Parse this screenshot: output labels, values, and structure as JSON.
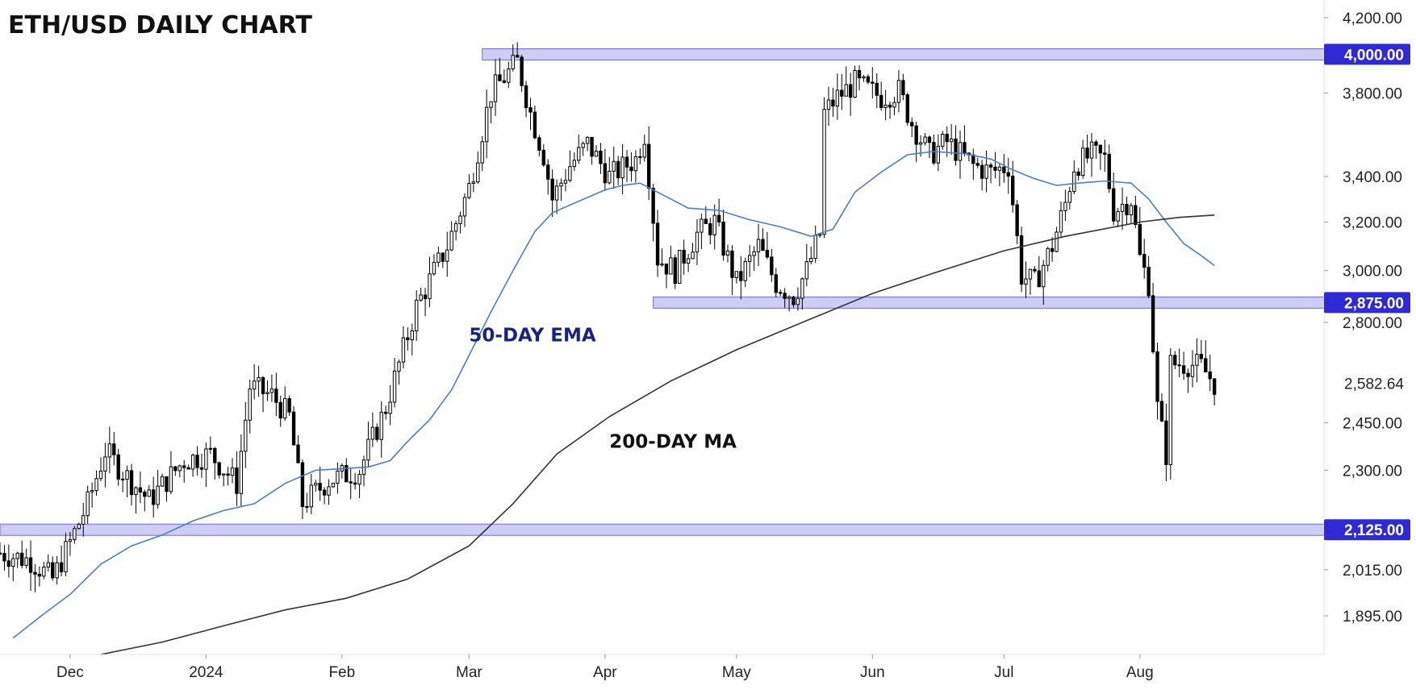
{
  "chart_data": {
    "type": "candlestick",
    "title": "ETH/USD DAILY CHART",
    "xlabel": "",
    "ylabel": "",
    "y_scale": "log",
    "ylim": [
      1800,
      4300
    ],
    "xlim": [
      "2023-11-15",
      "2024-09-12"
    ],
    "grid": false,
    "legend": "none",
    "y_ticks": [
      {
        "value": 4200,
        "label": "4,200.00"
      },
      {
        "value": 3800,
        "label": "3,800.00"
      },
      {
        "value": 3400,
        "label": "3,400.00"
      },
      {
        "value": 3200,
        "label": "3,200.00"
      },
      {
        "value": 3000,
        "label": "3,000.00"
      },
      {
        "value": 2800,
        "label": "2,800.00"
      },
      {
        "value": 2450,
        "label": "2,450.00"
      },
      {
        "value": 2300,
        "label": "2,300.00"
      },
      {
        "value": 2015,
        "label": "2,015.00"
      },
      {
        "value": 1895,
        "label": "1,895.00"
      }
    ],
    "x_ticks": [
      {
        "date": "2023-12-01",
        "label": "Dec"
      },
      {
        "date": "2024-01-01",
        "label": "2024"
      },
      {
        "date": "2024-02-01",
        "label": "Feb"
      },
      {
        "date": "2024-03-01",
        "label": "Mar"
      },
      {
        "date": "2024-04-01",
        "label": "Apr"
      },
      {
        "date": "2024-05-01",
        "label": "May"
      },
      {
        "date": "2024-06-01",
        "label": "Jun"
      },
      {
        "date": "2024-07-01",
        "label": "Jul"
      },
      {
        "date": "2024-08-01",
        "label": "Aug"
      }
    ],
    "levels": [
      {
        "value": 4000,
        "label": "4,000.00",
        "from": "2024-03-04"
      },
      {
        "value": 2875,
        "label": "2,875.00",
        "from": "2024-04-12"
      },
      {
        "value": 2125,
        "label": "2,125.00",
        "from": "2023-11-15"
      }
    ],
    "last_price": {
      "value": 2582.64,
      "label": "2,582.64"
    },
    "annotations": [
      {
        "text": "50-DAY EMA",
        "date": "2024-03-01",
        "value": 2730,
        "color": "#1a237e"
      },
      {
        "text": "200-DAY MA",
        "date": "2024-04-02",
        "value": 2370,
        "color": "#111111"
      }
    ],
    "colors": {
      "up": "#ffffff",
      "down": "#000000",
      "ema": "#4a7ec7",
      "ma": "#333333",
      "level_fill": "#c7c4f5",
      "level_line": "#6f6ae8",
      "badge": "#2f2ad6"
    },
    "series": [
      {
        "name": "50-DAY EMA",
        "points": [
          [
            "2023-11-18",
            1840
          ],
          [
            "2023-11-25",
            1900
          ],
          [
            "2023-12-01",
            1950
          ],
          [
            "2023-12-08",
            2030
          ],
          [
            "2023-12-15",
            2080
          ],
          [
            "2023-12-22",
            2110
          ],
          [
            "2023-12-29",
            2150
          ],
          [
            "2024-01-05",
            2180
          ],
          [
            "2024-01-12",
            2200
          ],
          [
            "2024-01-19",
            2260
          ],
          [
            "2024-01-26",
            2300
          ],
          [
            "2024-02-01",
            2305
          ],
          [
            "2024-02-07",
            2310
          ],
          [
            "2024-02-12",
            2330
          ],
          [
            "2024-02-16",
            2390
          ],
          [
            "2024-02-21",
            2460
          ],
          [
            "2024-02-26",
            2560
          ],
          [
            "2024-03-01",
            2680
          ],
          [
            "2024-03-06",
            2840
          ],
          [
            "2024-03-11",
            3000
          ],
          [
            "2024-03-16",
            3160
          ],
          [
            "2024-03-20",
            3240
          ],
          [
            "2024-03-26",
            3290
          ],
          [
            "2024-04-01",
            3340
          ],
          [
            "2024-04-05",
            3360
          ],
          [
            "2024-04-09",
            3370
          ],
          [
            "2024-04-13",
            3330
          ],
          [
            "2024-04-20",
            3260
          ],
          [
            "2024-04-27",
            3250
          ],
          [
            "2024-05-04",
            3210
          ],
          [
            "2024-05-11",
            3180
          ],
          [
            "2024-05-18",
            3140
          ],
          [
            "2024-05-23",
            3170
          ],
          [
            "2024-05-28",
            3330
          ],
          [
            "2024-06-03",
            3420
          ],
          [
            "2024-06-09",
            3500
          ],
          [
            "2024-06-15",
            3515
          ],
          [
            "2024-06-22",
            3505
          ],
          [
            "2024-06-28",
            3480
          ],
          [
            "2024-07-03",
            3430
          ],
          [
            "2024-07-08",
            3390
          ],
          [
            "2024-07-13",
            3360
          ],
          [
            "2024-07-18",
            3370
          ],
          [
            "2024-07-24",
            3380
          ],
          [
            "2024-07-30",
            3370
          ],
          [
            "2024-08-03",
            3300
          ],
          [
            "2024-08-07",
            3200
          ],
          [
            "2024-08-11",
            3110
          ],
          [
            "2024-08-15",
            3060
          ],
          [
            "2024-08-18",
            3020
          ]
        ]
      },
      {
        "name": "200-DAY MA",
        "points": [
          [
            "2023-12-08",
            1800
          ],
          [
            "2023-12-22",
            1830
          ],
          [
            "2024-01-05",
            1870
          ],
          [
            "2024-01-19",
            1910
          ],
          [
            "2024-02-02",
            1940
          ],
          [
            "2024-02-16",
            1990
          ],
          [
            "2024-03-01",
            2080
          ],
          [
            "2024-03-11",
            2200
          ],
          [
            "2024-03-21",
            2350
          ],
          [
            "2024-04-02",
            2470
          ],
          [
            "2024-04-16",
            2590
          ],
          [
            "2024-05-01",
            2700
          ],
          [
            "2024-05-16",
            2800
          ],
          [
            "2024-06-01",
            2910
          ],
          [
            "2024-06-15",
            2990
          ],
          [
            "2024-07-01",
            3080
          ],
          [
            "2024-07-15",
            3140
          ],
          [
            "2024-08-01",
            3200
          ],
          [
            "2024-08-10",
            3220
          ],
          [
            "2024-08-18",
            3230
          ]
        ]
      }
    ],
    "ohlc_anchors": [
      [
        "2023-11-15",
        2060
      ],
      [
        "2023-11-22",
        2040
      ],
      [
        "2023-11-27",
        1990
      ],
      [
        "2023-12-01",
        2090
      ],
      [
        "2023-12-05",
        2200
      ],
      [
        "2023-12-09",
        2360
      ],
      [
        "2023-12-14",
        2280
      ],
      [
        "2023-12-19",
        2210
      ],
      [
        "2023-12-27",
        2330
      ],
      [
        "2024-01-02",
        2350
      ],
      [
        "2024-01-08",
        2260
      ],
      [
        "2024-01-11",
        2570
      ],
      [
        "2024-01-16",
        2540
      ],
      [
        "2024-01-20",
        2470
      ],
      [
        "2024-01-23",
        2200
      ],
      [
        "2024-01-29",
        2270
      ],
      [
        "2024-02-05",
        2300
      ],
      [
        "2024-02-11",
        2500
      ],
      [
        "2024-02-18",
        2860
      ],
      [
        "2024-02-25",
        3100
      ],
      [
        "2024-03-01",
        3350
      ],
      [
        "2024-03-06",
        3800
      ],
      [
        "2024-03-12",
        3960
      ],
      [
        "2024-03-15",
        3700
      ],
      [
        "2024-03-18",
        3500
      ],
      [
        "2024-03-20",
        3300
      ],
      [
        "2024-03-24",
        3450
      ],
      [
        "2024-03-28",
        3550
      ],
      [
        "2024-04-02",
        3400
      ],
      [
        "2024-04-08",
        3480
      ],
      [
        "2024-04-10",
        3600
      ],
      [
        "2024-04-13",
        3050
      ],
      [
        "2024-04-17",
        3000
      ],
      [
        "2024-04-22",
        3150
      ],
      [
        "2024-04-26",
        3200
      ],
      [
        "2024-05-01",
        2950
      ],
      [
        "2024-05-06",
        3100
      ],
      [
        "2024-05-10",
        2950
      ],
      [
        "2024-05-14",
        2900
      ],
      [
        "2024-05-17",
        3000
      ],
      [
        "2024-05-20",
        3150
      ],
      [
        "2024-05-21",
        3700
      ],
      [
        "2024-05-24",
        3780
      ],
      [
        "2024-05-28",
        3850
      ],
      [
        "2024-06-03",
        3780
      ],
      [
        "2024-06-07",
        3810
      ],
      [
        "2024-06-10",
        3650
      ],
      [
        "2024-06-14",
        3500
      ],
      [
        "2024-06-18",
        3560
      ],
      [
        "2024-06-24",
        3450
      ],
      [
        "2024-06-28",
        3420
      ],
      [
        "2024-07-02",
        3450
      ],
      [
        "2024-07-05",
        2980
      ],
      [
        "2024-07-08",
        2950
      ],
      [
        "2024-07-12",
        3100
      ],
      [
        "2024-07-15",
        3280
      ],
      [
        "2024-07-17",
        3450
      ],
      [
        "2024-07-21",
        3500
      ],
      [
        "2024-07-24",
        3480
      ],
      [
        "2024-07-26",
        3250
      ],
      [
        "2024-07-30",
        3300
      ],
      [
        "2024-08-01",
        3050
      ],
      [
        "2024-08-03",
        2950
      ],
      [
        "2024-08-05",
        2500
      ],
      [
        "2024-08-07",
        2350
      ],
      [
        "2024-08-08",
        2650
      ],
      [
        "2024-08-12",
        2650
      ],
      [
        "2024-08-15",
        2640
      ],
      [
        "2024-08-18",
        2582.64
      ]
    ]
  }
}
